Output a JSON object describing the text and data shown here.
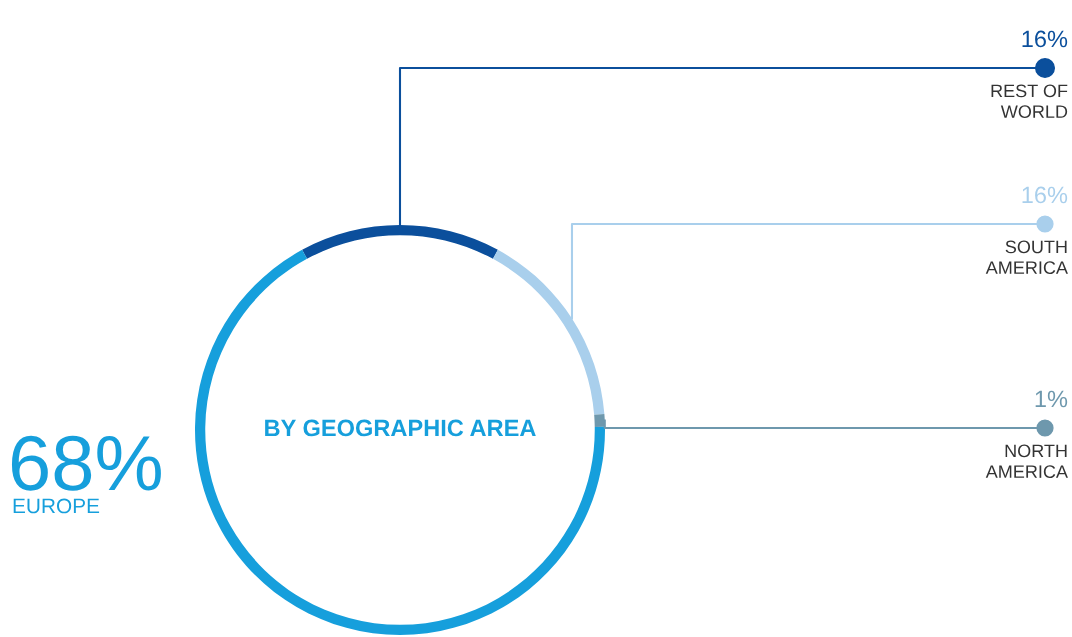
{
  "chart_data": {
    "type": "donut",
    "title": "BY GEOGRAPHIC AREA",
    "categories": [
      "REST OF WORLD",
      "SOUTH AMERICA",
      "NORTH AMERICA",
      "EUROPE"
    ],
    "values": [
      16,
      16,
      1,
      68
    ],
    "value_labels": [
      "16%",
      "16%",
      "1%",
      "68%"
    ],
    "colors": [
      "#0b4f9c",
      "#a9cfec",
      "#6e98ad",
      "#169fdc"
    ],
    "legend": "right"
  }
}
